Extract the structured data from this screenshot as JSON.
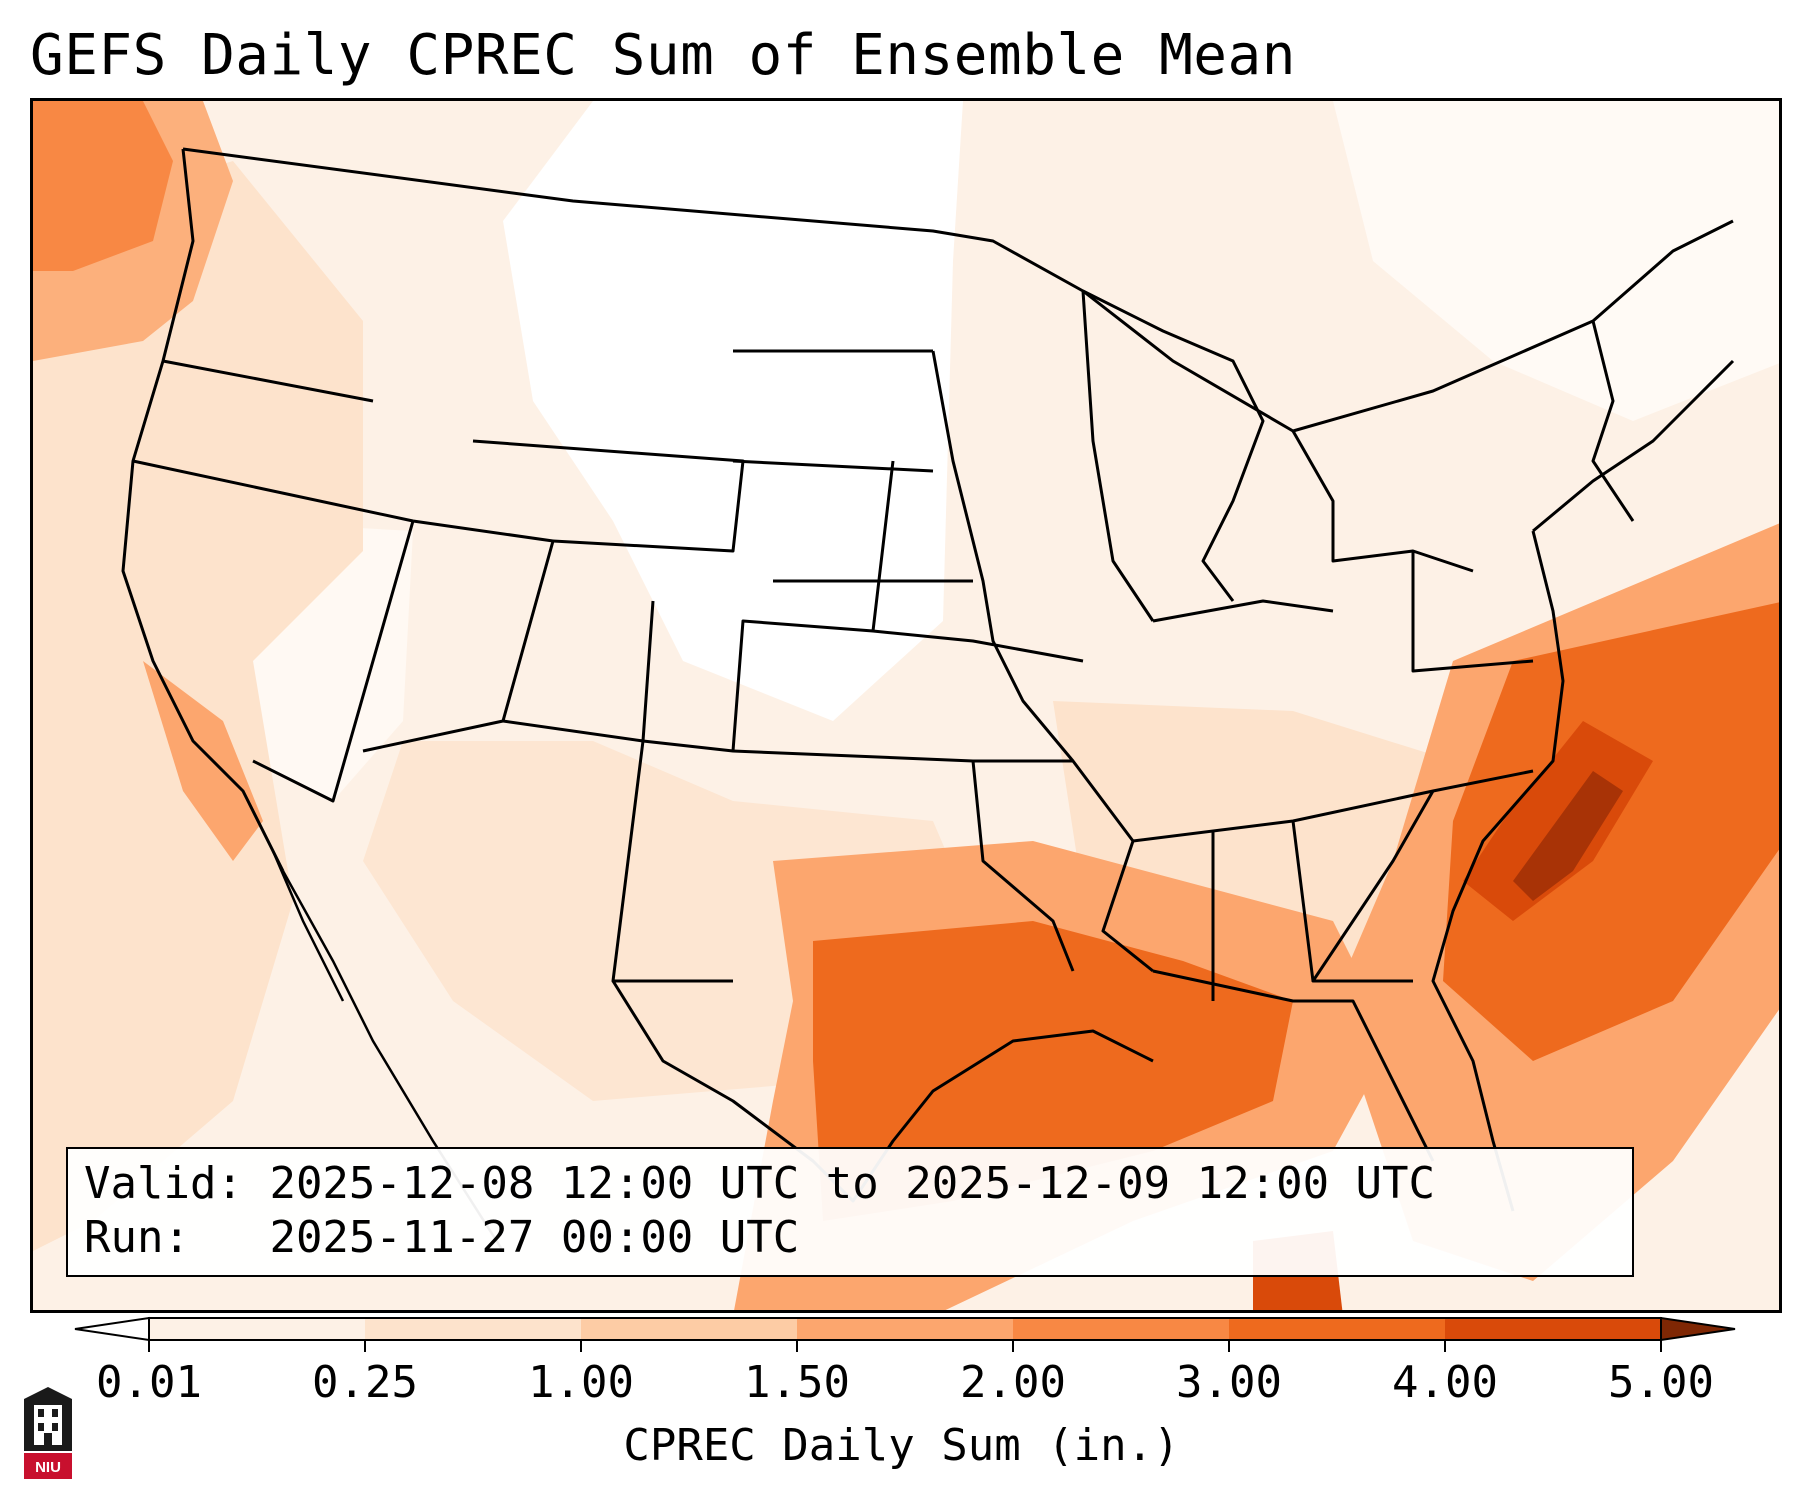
{
  "title": "GEFS Daily CPREC Sum of Ensemble Mean",
  "info": {
    "valid_label": "Valid:",
    "valid_value": "2025-12-08 12:00 UTC to 2025-12-09 12:00 UTC",
    "run_label": "Run:",
    "run_value": "2025-11-27 00:00 UTC"
  },
  "colorbar": {
    "label": "CPREC Daily Sum (in.)",
    "ticks": [
      "0.01",
      "0.25",
      "1.00",
      "1.50",
      "2.00",
      "3.00",
      "4.00",
      "5.00"
    ],
    "colors": [
      "#fdf1e6",
      "#fde3cc",
      "#fdcca5",
      "#fca66e",
      "#f88844",
      "#ee6a1e",
      "#d94a0a",
      "#a83306"
    ],
    "under_color": "#ffffff",
    "over_color": "#7f2704"
  },
  "logo": {
    "text": "NIU",
    "color": "#c8102e"
  },
  "map": {
    "region": "Contiguous United States",
    "max_precip_areas": [
      "Gulf of Mexico",
      "Atlantic off the Carolinas",
      "Pacific Northwest coast"
    ]
  }
}
